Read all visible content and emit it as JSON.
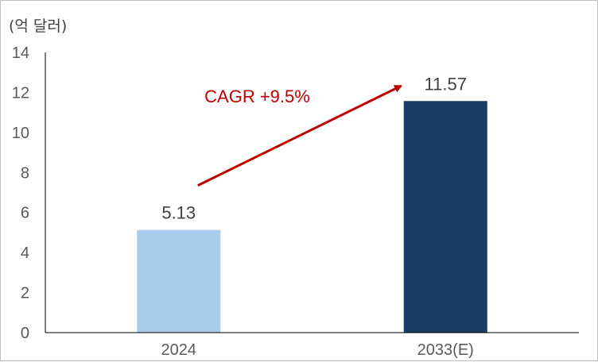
{
  "chart_data": {
    "type": "bar",
    "unit_label": "(억 달러)",
    "categories": [
      "2024",
      "2033(E)"
    ],
    "values": [
      5.13,
      11.57
    ],
    "value_labels": [
      "5.13",
      "11.57"
    ],
    "bar_colors": [
      "#a9cbec",
      "#1a3d63"
    ],
    "ylim": [
      0,
      14
    ],
    "yticks": [
      0,
      2,
      4,
      6,
      8,
      10,
      12,
      14
    ],
    "grid": false,
    "legend": "none",
    "annotation": {
      "text": "CAGR +9.5%",
      "color": "#c00000",
      "kind": "arrow from first bar to second bar"
    }
  }
}
